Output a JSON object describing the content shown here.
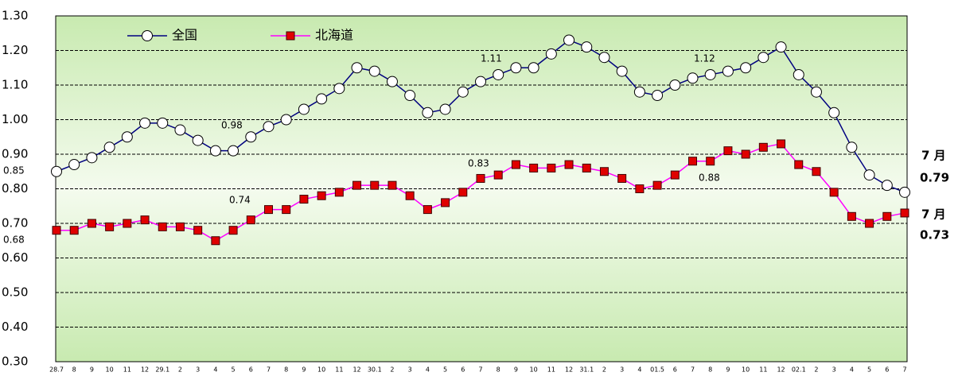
{
  "chart_data": {
    "type": "line",
    "categories": [
      "28.7",
      "8",
      "9",
      "10",
      "11",
      "12",
      "29.1",
      "2",
      "3",
      "4",
      "5",
      "6",
      "7",
      "8",
      "9",
      "10",
      "11",
      "12",
      "30.1",
      "2",
      "3",
      "4",
      "5",
      "6",
      "7",
      "8",
      "9",
      "10",
      "11",
      "12",
      "31.1",
      "2",
      "3",
      "4",
      "01.5",
      "6",
      "7",
      "8",
      "9",
      "10",
      "11",
      "12",
      "02.1",
      "2",
      "3",
      "4",
      "5",
      "6",
      "7"
    ],
    "series": [
      {
        "name": "全国",
        "color": "#000080",
        "marker": "circle",
        "marker_color": "#ffffff",
        "values": [
          0.85,
          0.87,
          0.89,
          0.92,
          0.95,
          0.99,
          0.99,
          0.97,
          0.94,
          0.91,
          0.91,
          0.95,
          0.98,
          1.0,
          1.03,
          1.06,
          1.09,
          1.15,
          1.14,
          1.11,
          1.07,
          1.02,
          1.03,
          1.08,
          1.11,
          1.13,
          1.15,
          1.15,
          1.19,
          1.23,
          1.21,
          1.18,
          1.14,
          1.08,
          1.07,
          1.1,
          1.12,
          1.13,
          1.14,
          1.15,
          1.18,
          1.21,
          1.13,
          1.08,
          1.02,
          0.92,
          0.84,
          0.81,
          0.79
        ]
      },
      {
        "name": "北海道",
        "color": "#ff00ff",
        "marker": "square",
        "marker_color": "#e00000",
        "values": [
          0.68,
          0.68,
          0.7,
          0.69,
          0.7,
          0.71,
          0.69,
          0.69,
          0.68,
          0.65,
          0.68,
          0.71,
          0.74,
          0.74,
          0.77,
          0.78,
          0.79,
          0.81,
          0.81,
          0.81,
          0.78,
          0.74,
          0.76,
          0.79,
          0.83,
          0.84,
          0.87,
          0.86,
          0.86,
          0.87,
          0.86,
          0.85,
          0.83,
          0.8,
          0.81,
          0.84,
          0.88,
          0.88,
          0.91,
          0.9,
          0.92,
          0.93,
          0.87,
          0.85,
          0.79,
          0.72,
          0.7,
          0.72,
          0.73
        ]
      }
    ],
    "annotations": [
      "0.85",
      "0.68",
      "0.98",
      "0.74",
      "1.11",
      "0.83",
      "1.12",
      "0.88",
      "7 月",
      "0.79",
      "7 月",
      "0.73"
    ],
    "ylim": [
      0.3,
      1.3
    ],
    "yticks": [
      {
        "value": 0.3,
        "label": "0.30"
      },
      {
        "value": 0.4,
        "label": "0.40"
      },
      {
        "value": 0.5,
        "label": "0.50"
      },
      {
        "value": 0.6,
        "label": "0.60"
      },
      {
        "value": 0.7,
        "label": "0.70"
      },
      {
        "value": 0.8,
        "label": "0.80"
      },
      {
        "value": 0.9,
        "label": "0.90"
      },
      {
        "value": 1.0,
        "label": "1.00"
      },
      {
        "value": 1.1,
        "label": "1.10"
      },
      {
        "value": 1.2,
        "label": "1.20"
      },
      {
        "value": 1.3,
        "label": "1.30"
      }
    ],
    "grid": true,
    "background": "#e6f5d8"
  }
}
